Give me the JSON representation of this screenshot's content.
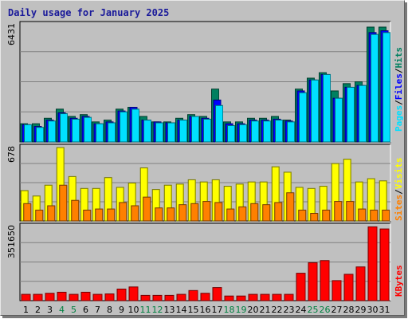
{
  "title": "Daily usage for January 2025",
  "colors": {
    "background": "#c0c0c0",
    "plot": "#c0c0c0",
    "hits": "#008060",
    "files": "#0000ff",
    "pages": "#00e0ff",
    "visits": "#ffff00",
    "sites": "#ff8000",
    "kbytes": "#ff0000",
    "weekend_label": "#008040",
    "weekday_label": "#000000",
    "title": "#1a1a9a"
  },
  "chart_data": [
    {
      "type": "bar",
      "ymax_label": "6431",
      "ylim": [
        0,
        6431
      ],
      "legend": [
        {
          "name": "Pages",
          "color": "#00e0ff"
        },
        {
          "name": "Files",
          "color": "#0000ff"
        },
        {
          "name": "Hits",
          "color": "#008060"
        }
      ],
      "categories": [
        "1",
        "2",
        "3",
        "4",
        "5",
        "6",
        "7",
        "8",
        "9",
        "10",
        "11",
        "12",
        "13",
        "14",
        "15",
        "16",
        "17",
        "18",
        "19",
        "20",
        "21",
        "22",
        "23",
        "24",
        "25",
        "26",
        "27",
        "28",
        "29",
        "30",
        "31"
      ],
      "series": [
        {
          "name": "Hits",
          "values": [
            1000,
            1000,
            1300,
            1800,
            1400,
            1500,
            1100,
            1200,
            1800,
            1900,
            1400,
            1100,
            1100,
            1300,
            1500,
            1400,
            2900,
            1100,
            1100,
            1300,
            1300,
            1400,
            1200,
            2900,
            3500,
            3800,
            2800,
            3200,
            3300,
            6300,
            6300
          ]
        },
        {
          "name": "Files",
          "values": [
            950,
            850,
            1200,
            1600,
            1300,
            1400,
            1000,
            1100,
            1700,
            1900,
            1200,
            1100,
            1050,
            1200,
            1400,
            1300,
            2300,
            1000,
            1000,
            1200,
            1200,
            1250,
            1150,
            2800,
            3400,
            3700,
            2400,
            3000,
            3100,
            6000,
            6100
          ]
        },
        {
          "name": "Pages",
          "values": [
            950,
            800,
            1150,
            1550,
            1250,
            1350,
            1000,
            1050,
            1650,
            1800,
            1200,
            1050,
            1050,
            1200,
            1400,
            1250,
            2000,
            900,
            950,
            1150,
            1150,
            1200,
            1100,
            2700,
            3400,
            3700,
            2400,
            3000,
            3100,
            5900,
            6000
          ]
        }
      ]
    },
    {
      "type": "bar",
      "ymax_label": "678",
      "ylim": [
        0,
        678
      ],
      "legend": [
        {
          "name": "Sites",
          "color": "#ff8000"
        },
        {
          "name": "Visits",
          "color": "#ffff00"
        }
      ],
      "categories": [
        "1",
        "2",
        "3",
        "4",
        "5",
        "6",
        "7",
        "8",
        "9",
        "10",
        "11",
        "12",
        "13",
        "14",
        "15",
        "16",
        "17",
        "18",
        "19",
        "20",
        "21",
        "22",
        "23",
        "24",
        "25",
        "26",
        "27",
        "28",
        "29",
        "30",
        "31"
      ],
      "series": [
        {
          "name": "Visits",
          "values": [
            280,
            230,
            330,
            678,
            410,
            300,
            300,
            400,
            310,
            350,
            490,
            290,
            330,
            340,
            380,
            360,
            380,
            320,
            340,
            360,
            360,
            500,
            450,
            310,
            300,
            320,
            530,
            570,
            360,
            390,
            370
          ]
        },
        {
          "name": "Sites",
          "values": [
            160,
            100,
            140,
            330,
            190,
            100,
            110,
            110,
            170,
            140,
            220,
            120,
            120,
            150,
            160,
            180,
            170,
            110,
            130,
            160,
            150,
            170,
            260,
            100,
            70,
            100,
            180,
            180,
            110,
            100,
            100
          ]
        }
      ]
    },
    {
      "type": "bar",
      "ymax_label": "351650",
      "ylim": [
        0,
        351650
      ],
      "legend": [
        {
          "name": "KBytes",
          "color": "#ff0000"
        }
      ],
      "categories": [
        "1",
        "2",
        "3",
        "4",
        "5",
        "6",
        "7",
        "8",
        "9",
        "10",
        "11",
        "12",
        "13",
        "14",
        "15",
        "16",
        "17",
        "18",
        "19",
        "20",
        "21",
        "22",
        "23",
        "24",
        "25",
        "26",
        "27",
        "28",
        "29",
        "30",
        "31"
      ],
      "series": [
        {
          "name": "KBytes",
          "values": [
            30000,
            30000,
            35000,
            40000,
            30000,
            40000,
            30000,
            32000,
            55000,
            65000,
            25000,
            25000,
            25000,
            30000,
            48000,
            35000,
            62000,
            22000,
            22000,
            30000,
            30000,
            30000,
            30000,
            130000,
            180000,
            190000,
            95000,
            125000,
            160000,
            350000,
            340000
          ]
        }
      ]
    }
  ],
  "weekend_days": [
    "4",
    "5",
    "11",
    "12",
    "18",
    "19",
    "25",
    "26"
  ]
}
